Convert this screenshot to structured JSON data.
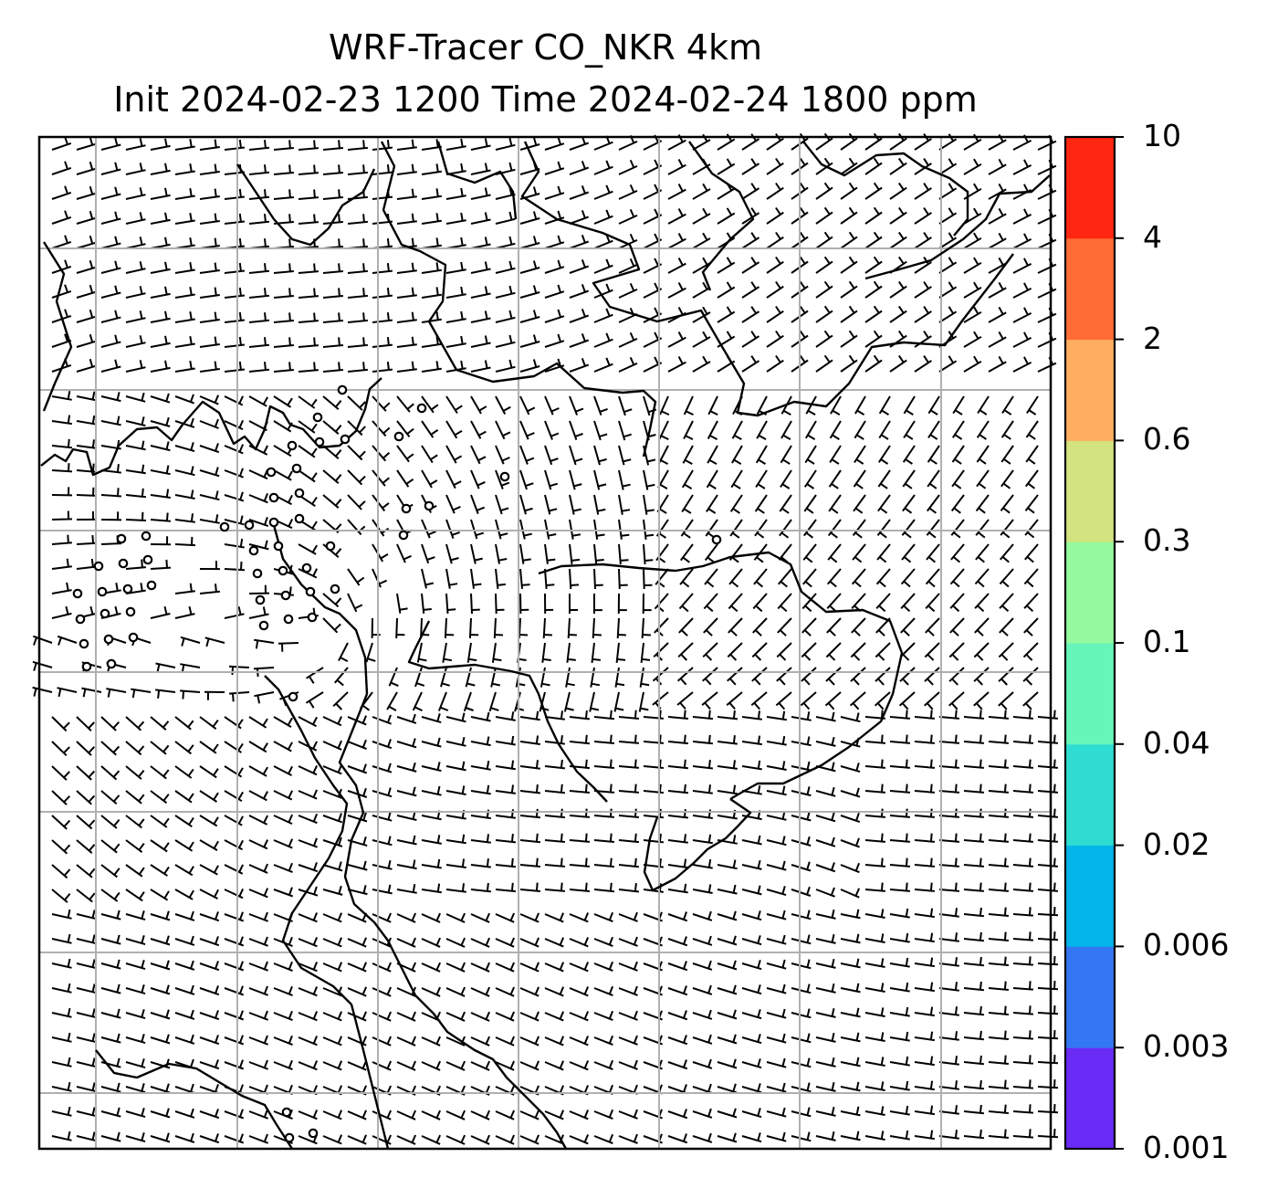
{
  "title": {
    "line1": "WRF-Tracer CO_NKR 4km",
    "line2": "Init 2024-02-23 1200 Time 2024-02-24 1800 ppm"
  },
  "map": {
    "gridlines": true,
    "coastline_color": "#000000",
    "barb_color": "#000000",
    "background": "#ffffff"
  },
  "colorbar": {
    "orientation": "vertical",
    "placement": "right",
    "tick_labels": [
      "0.001",
      "0.003",
      "0.006",
      "0.02",
      "0.04",
      "0.1",
      "0.3",
      "0.6",
      "2",
      "4",
      "10"
    ],
    "colors": [
      "#6a2bf6",
      "#3477f2",
      "#03b5ea",
      "#2edcd1",
      "#67f6b9",
      "#93fb9e",
      "#d2e37f",
      "#fdaf5f",
      "#ff6c35",
      "#ff2612"
    ]
  }
}
